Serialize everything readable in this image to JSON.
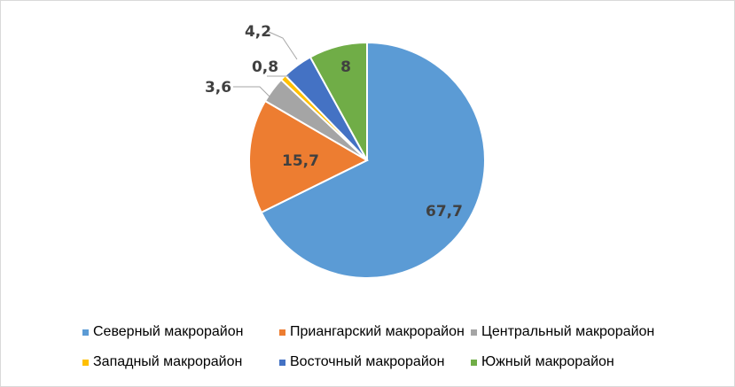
{
  "chart_data": {
    "type": "pie",
    "start_angle": "top, clockwise",
    "series": [
      {
        "name": "Северный макрорайон",
        "value": 67.7,
        "label": "67,7",
        "color": "#5B9BD5"
      },
      {
        "name": "Приангарский макрорайон",
        "value": 15.7,
        "label": "15,7",
        "color": "#ED7D31"
      },
      {
        "name": "Центральный макрорайон",
        "value": 3.6,
        "label": "3,6",
        "color": "#A5A5A5"
      },
      {
        "name": "Западный макрорайон",
        "value": 0.8,
        "label": "0,8",
        "color": "#FFC000"
      },
      {
        "name": "Восточный макрорайон",
        "value": 4.2,
        "label": "4,2",
        "color": "#4472C4"
      },
      {
        "name": "Южный макрорайон",
        "value": 8,
        "label": "8",
        "color": "#70AD47"
      }
    ],
    "legend_position": "bottom"
  }
}
